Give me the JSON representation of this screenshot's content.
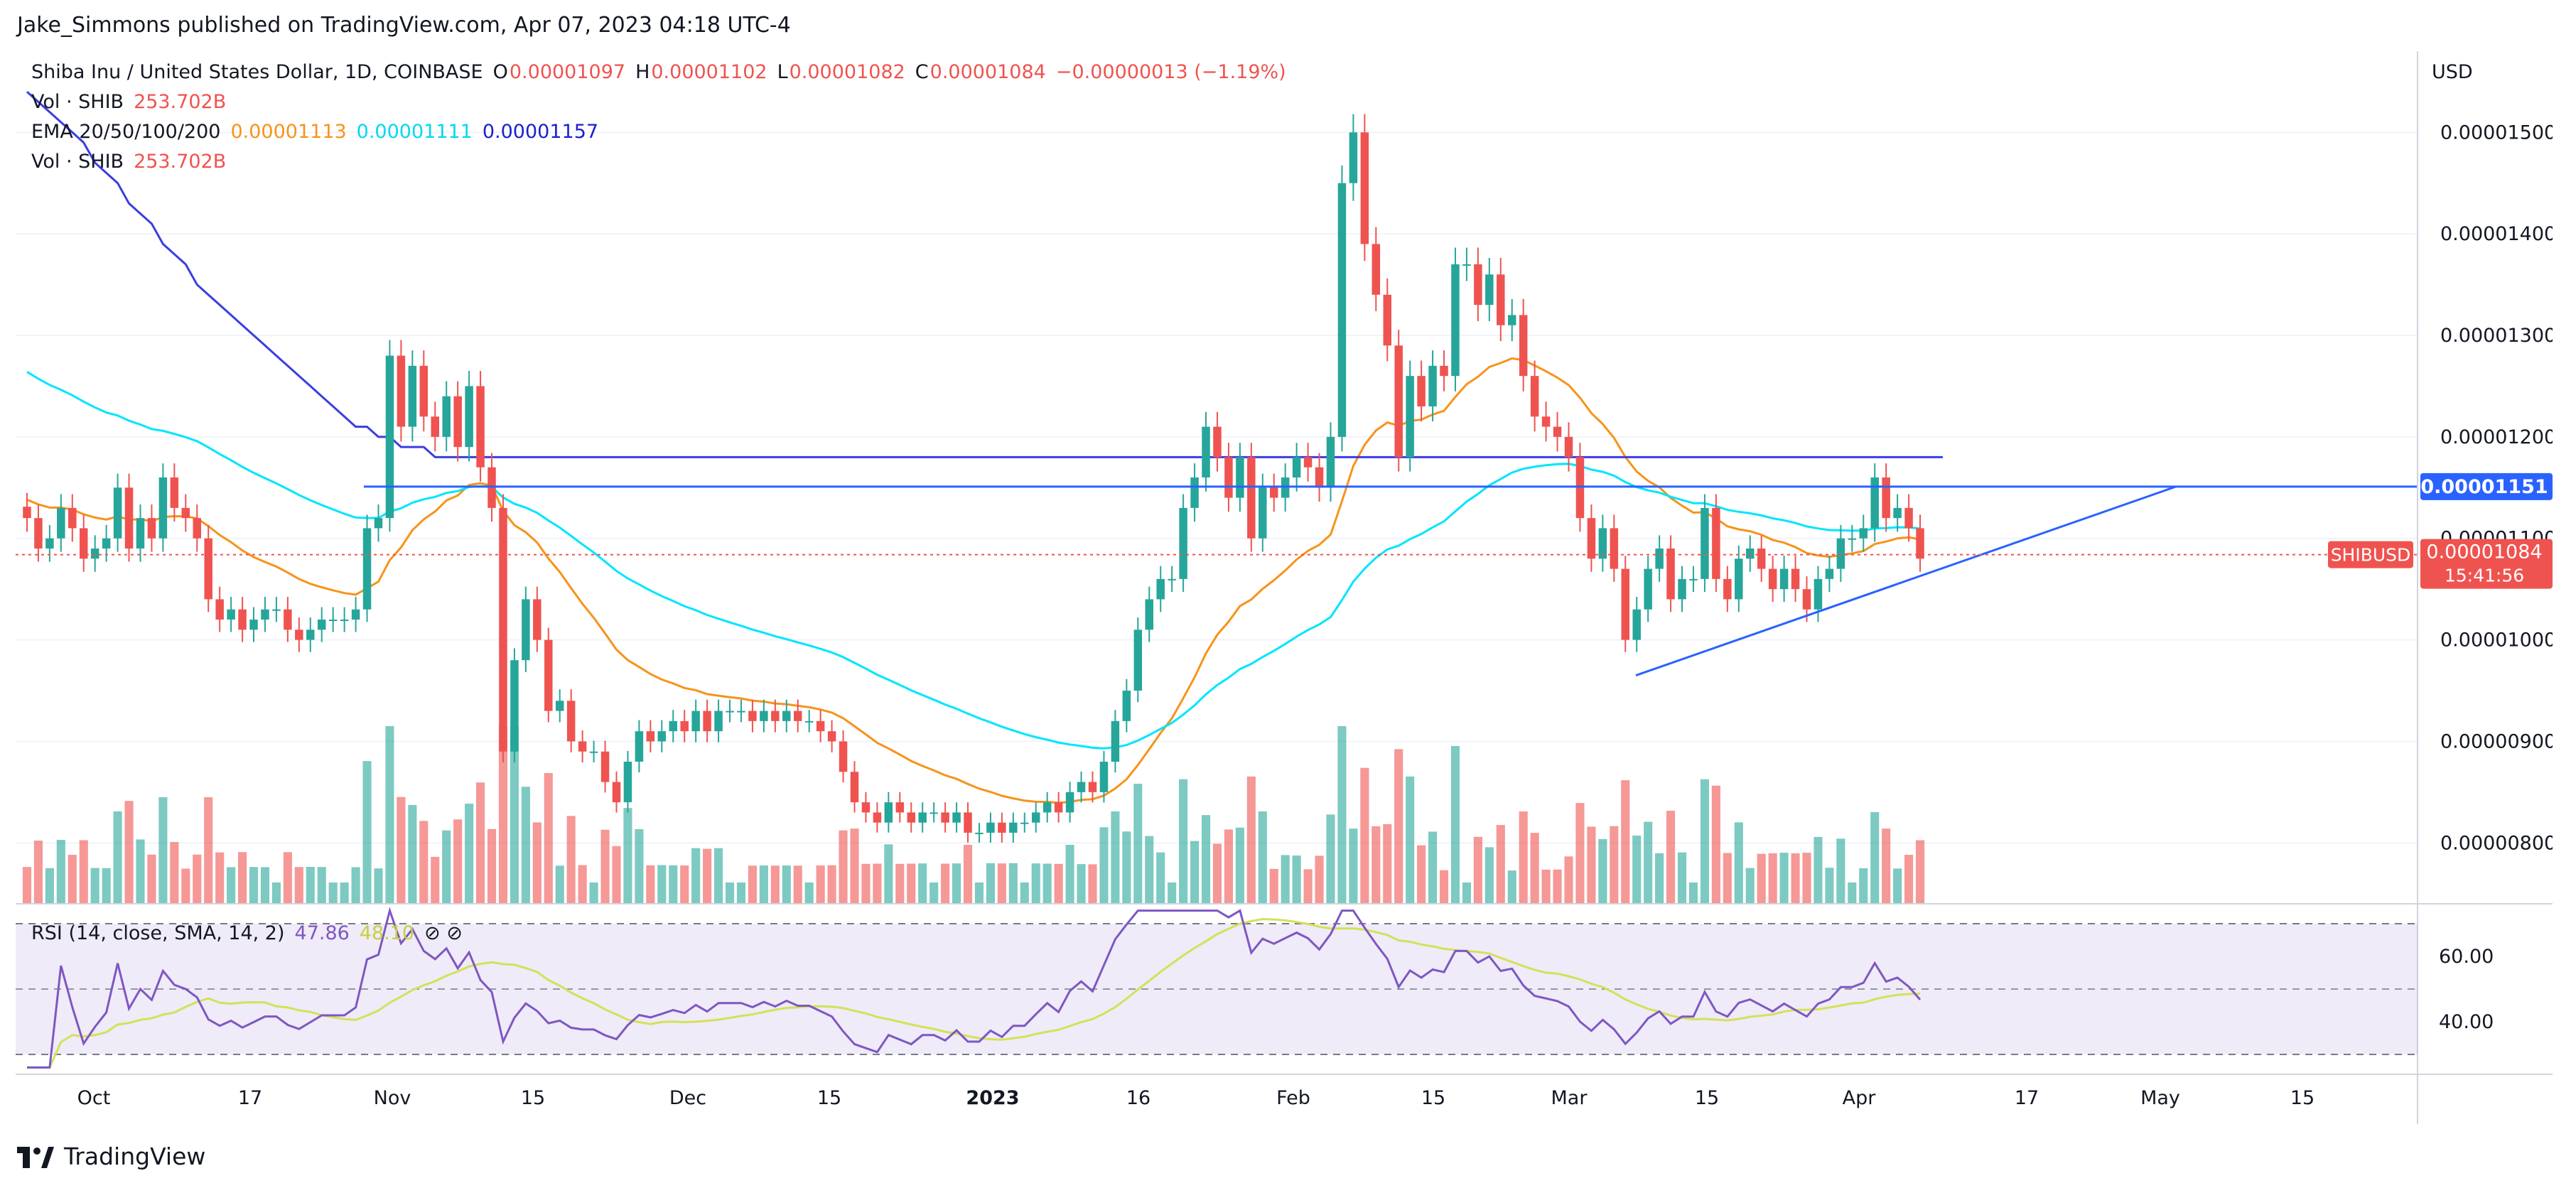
{
  "header": {
    "published": "Jake_Simmons published on TradingView.com, Apr 07, 2023 04:18 UTC-4"
  },
  "footer": {
    "brand": "TradingView"
  },
  "legend": {
    "symbol": "Shiba Inu / United States Dollar, 1D, COINBASE",
    "ohlc": {
      "o_label": "O",
      "o": "0.00001097",
      "h_label": "H",
      "h": "0.00001102",
      "l_label": "L",
      "l": "0.00001082",
      "c_label": "C",
      "c": "0.00001084",
      "change": "−0.00000013 (−1.19%)"
    },
    "vol1": {
      "label": "Vol · SHIB",
      "value": "253.702B"
    },
    "ema": {
      "label": "EMA 20/50/100/200",
      "v20": "0.00001113",
      "v50": "0.00001111",
      "v100": "0.00001157"
    },
    "vol2": {
      "label": "Vol · SHIB",
      "value": "253.702B"
    },
    "rsi": {
      "label": "RSI (14, close, SMA, 14, 2)",
      "value": "47.86",
      "sma": "48.10",
      "icons": "⊘ ⊘"
    }
  },
  "axis": {
    "currency": "USD",
    "price_ticks": [
      "0.00001500",
      "0.00001400",
      "0.00001300",
      "0.00001200",
      "0.00001100",
      "0.00001000",
      "0.00000900",
      "0.00000800"
    ],
    "rsi_ticks": [
      "60.00",
      "40.00"
    ],
    "time_ticks": [
      "Oct",
      "17",
      "Nov",
      "15",
      "Dec",
      "15",
      "2023",
      "16",
      "Feb",
      "15",
      "Mar",
      "15",
      "Apr",
      "17",
      "May",
      "15"
    ]
  },
  "badges": {
    "resistance": "0.00001151",
    "symbol_tag": "SHIBUSD",
    "last_price": "0.00001084",
    "countdown": "15:41:56"
  },
  "colors": {
    "up": "#26a69a",
    "down": "#ef5350",
    "ema20": "#f7931a",
    "ema50": "#00e5ff",
    "ema100": "#3a3ee0",
    "trend": "#2962ff",
    "rsi": "#7e57c2",
    "rsi_sma": "#d4e157"
  },
  "chart_data": {
    "type": "candlestick",
    "symbol": "SHIBUSD",
    "interval": "1D",
    "unit": "USD",
    "ylim": [
      7.4e-06,
      1.58e-05
    ],
    "close": [
      1.12e-05,
      1.09e-05,
      1.1e-05,
      1.13e-05,
      1.11e-05,
      1.08e-05,
      1.09e-05,
      1.1e-05,
      1.15e-05,
      1.09e-05,
      1.12e-05,
      1.1e-05,
      1.16e-05,
      1.13e-05,
      1.12e-05,
      1.1e-05,
      1.04e-05,
      1.02e-05,
      1.03e-05,
      1.01e-05,
      1.02e-05,
      1.03e-05,
      1.03e-05,
      1.01e-05,
      1e-05,
      1.01e-05,
      1.02e-05,
      1.02e-05,
      1.02e-05,
      1.03e-05,
      1.11e-05,
      1.12e-05,
      1.28e-05,
      1.21e-05,
      1.27e-05,
      1.22e-05,
      1.2e-05,
      1.24e-05,
      1.19e-05,
      1.25e-05,
      1.17e-05,
      1.13e-05,
      8.9e-06,
      9.8e-06,
      1.04e-05,
      1e-05,
      9.3e-06,
      9.4e-06,
      9e-06,
      8.9e-06,
      8.9e-06,
      8.6e-06,
      8.4e-06,
      8.8e-06,
      9.1e-06,
      9e-06,
      9.1e-06,
      9.2e-06,
      9.1e-06,
      9.3e-06,
      9.1e-06,
      9.3e-06,
      9.3e-06,
      9.3e-06,
      9.2e-06,
      9.3e-06,
      9.2e-06,
      9.3e-06,
      9.2e-06,
      9.2e-06,
      9.1e-06,
      9e-06,
      8.7e-06,
      8.4e-06,
      8.3e-06,
      8.2e-06,
      8.4e-06,
      8.3e-06,
      8.2e-06,
      8.3e-06,
      8.3e-06,
      8.2e-06,
      8.3e-06,
      8.1e-06,
      8.1e-06,
      8.2e-06,
      8.1e-06,
      8.2e-06,
      8.2e-06,
      8.3e-06,
      8.4e-06,
      8.3e-06,
      8.5e-06,
      8.6e-06,
      8.5e-06,
      8.8e-06,
      9.2e-06,
      9.5e-06,
      1.01e-05,
      1.04e-05,
      1.06e-05,
      1.06e-05,
      1.13e-05,
      1.16e-05,
      1.21e-05,
      1.18e-05,
      1.14e-05,
      1.18e-05,
      1.1e-05,
      1.15e-05,
      1.14e-05,
      1.16e-05,
      1.18e-05,
      1.17e-05,
      1.15e-05,
      1.2e-05,
      1.45e-05,
      1.5e-05,
      1.39e-05,
      1.34e-05,
      1.29e-05,
      1.18e-05,
      1.26e-05,
      1.23e-05,
      1.27e-05,
      1.26e-05,
      1.37e-05,
      1.37e-05,
      1.33e-05,
      1.36e-05,
      1.31e-05,
      1.32e-05,
      1.26e-05,
      1.22e-05,
      1.21e-05,
      1.2e-05,
      1.18e-05,
      1.12e-05,
      1.08e-05,
      1.11e-05,
      1.07e-05,
      1e-05,
      1.03e-05,
      1.07e-05,
      1.09e-05,
      1.04e-05,
      1.06e-05,
      1.06e-05,
      1.13e-05,
      1.06e-05,
      1.04e-05,
      1.08e-05,
      1.09e-05,
      1.07e-05,
      1.05e-05,
      1.07e-05,
      1.05e-05,
      1.03e-05,
      1.06e-05,
      1.07e-05,
      1.1e-05,
      1.1e-05,
      1.11e-05,
      1.16e-05,
      1.12e-05,
      1.13e-05,
      1.11e-05,
      1.08e-05
    ],
    "ema200": [
      1.54e-05,
      1.53e-05,
      1.52e-05,
      1.51e-05,
      1.5e-05,
      1.49e-05,
      1.47e-05,
      1.46e-05,
      1.45e-05,
      1.43e-05,
      1.42e-05,
      1.41e-05,
      1.39e-05,
      1.38e-05,
      1.37e-05,
      1.35e-05,
      1.34e-05,
      1.33e-05,
      1.32e-05,
      1.31e-05,
      1.3e-05,
      1.29e-05,
      1.28e-05,
      1.27e-05,
      1.26e-05,
      1.25e-05,
      1.24e-05,
      1.23e-05,
      1.22e-05,
      1.21e-05,
      1.21e-05,
      1.2e-05,
      1.2e-05,
      1.19e-05,
      1.19e-05,
      1.19e-05,
      1.18e-05,
      1.18e-05,
      1.18e-05,
      1.18e-05,
      1.18e-05,
      1.18e-05,
      1.18e-05,
      1.18e-05,
      1.18e-05,
      1.18e-05,
      1.18e-05,
      1.18e-05,
      1.18e-05,
      1.18e-05,
      1.18e-05,
      1.18e-05,
      1.18e-05,
      1.18e-05,
      1.18e-05,
      1.18e-05,
      1.18e-05,
      1.18e-05,
      1.18e-05,
      1.18e-05,
      1.18e-05,
      1.18e-05,
      1.18e-05,
      1.18e-05,
      1.18e-05,
      1.18e-05,
      1.18e-05,
      1.18e-05,
      1.18e-05,
      1.18e-05,
      1.18e-05,
      1.18e-05,
      1.18e-05,
      1.18e-05,
      1.18e-05,
      1.18e-05,
      1.18e-05,
      1.18e-05,
      1.18e-05,
      1.18e-05,
      1.18e-05,
      1.18e-05,
      1.18e-05,
      1.18e-05,
      1.18e-05,
      1.18e-05,
      1.18e-05,
      1.18e-05,
      1.18e-05,
      1.18e-05,
      1.18e-05,
      1.18e-05,
      1.18e-05,
      1.18e-05,
      1.18e-05,
      1.18e-05,
      1.18e-05,
      1.18e-05,
      1.18e-05,
      1.18e-05,
      1.18e-05,
      1.18e-05,
      1.18e-05,
      1.18e-05,
      1.18e-05,
      1.18e-05,
      1.18e-05,
      1.18e-05,
      1.18e-05,
      1.18e-05,
      1.18e-05,
      1.18e-05,
      1.18e-05,
      1.18e-05,
      1.18e-05,
      1.18e-05,
      1.18e-05,
      1.18e-05,
      1.18e-05,
      1.18e-05,
      1.18e-05,
      1.18e-05,
      1.18e-05,
      1.18e-05,
      1.18e-05,
      1.18e-05,
      1.18e-05,
      1.18e-05,
      1.18e-05,
      1.18e-05,
      1.18e-05,
      1.18e-05,
      1.18e-05,
      1.18e-05,
      1.18e-05,
      1.18e-05,
      1.18e-05,
      1.18e-05,
      1.18e-05,
      1.18e-05,
      1.18e-05,
      1.18e-05,
      1.18e-05,
      1.18e-05,
      1.18e-05,
      1.18e-05,
      1.18e-05,
      1.18e-05,
      1.18e-05,
      1.18e-05,
      1.18e-05,
      1.18e-05,
      1.18e-05,
      1.18e-05,
      1.18e-05,
      1.18e-05,
      1.18e-05,
      1.18e-05,
      1.18e-05,
      1.18e-05,
      1.18e-05,
      1.18e-05,
      1.18e-05,
      1.18e-05,
      1.18e-05,
      1.18e-05,
      1.18e-05,
      1.18e-05,
      1.18e-05,
      1.18e-05
    ],
    "horizontal_line": 1.151e-05,
    "last_price": 1.084e-05,
    "rsi": {
      "ylim": [
        25,
        75
      ],
      "bands": [
        30,
        70
      ],
      "mid": 50
    }
  }
}
